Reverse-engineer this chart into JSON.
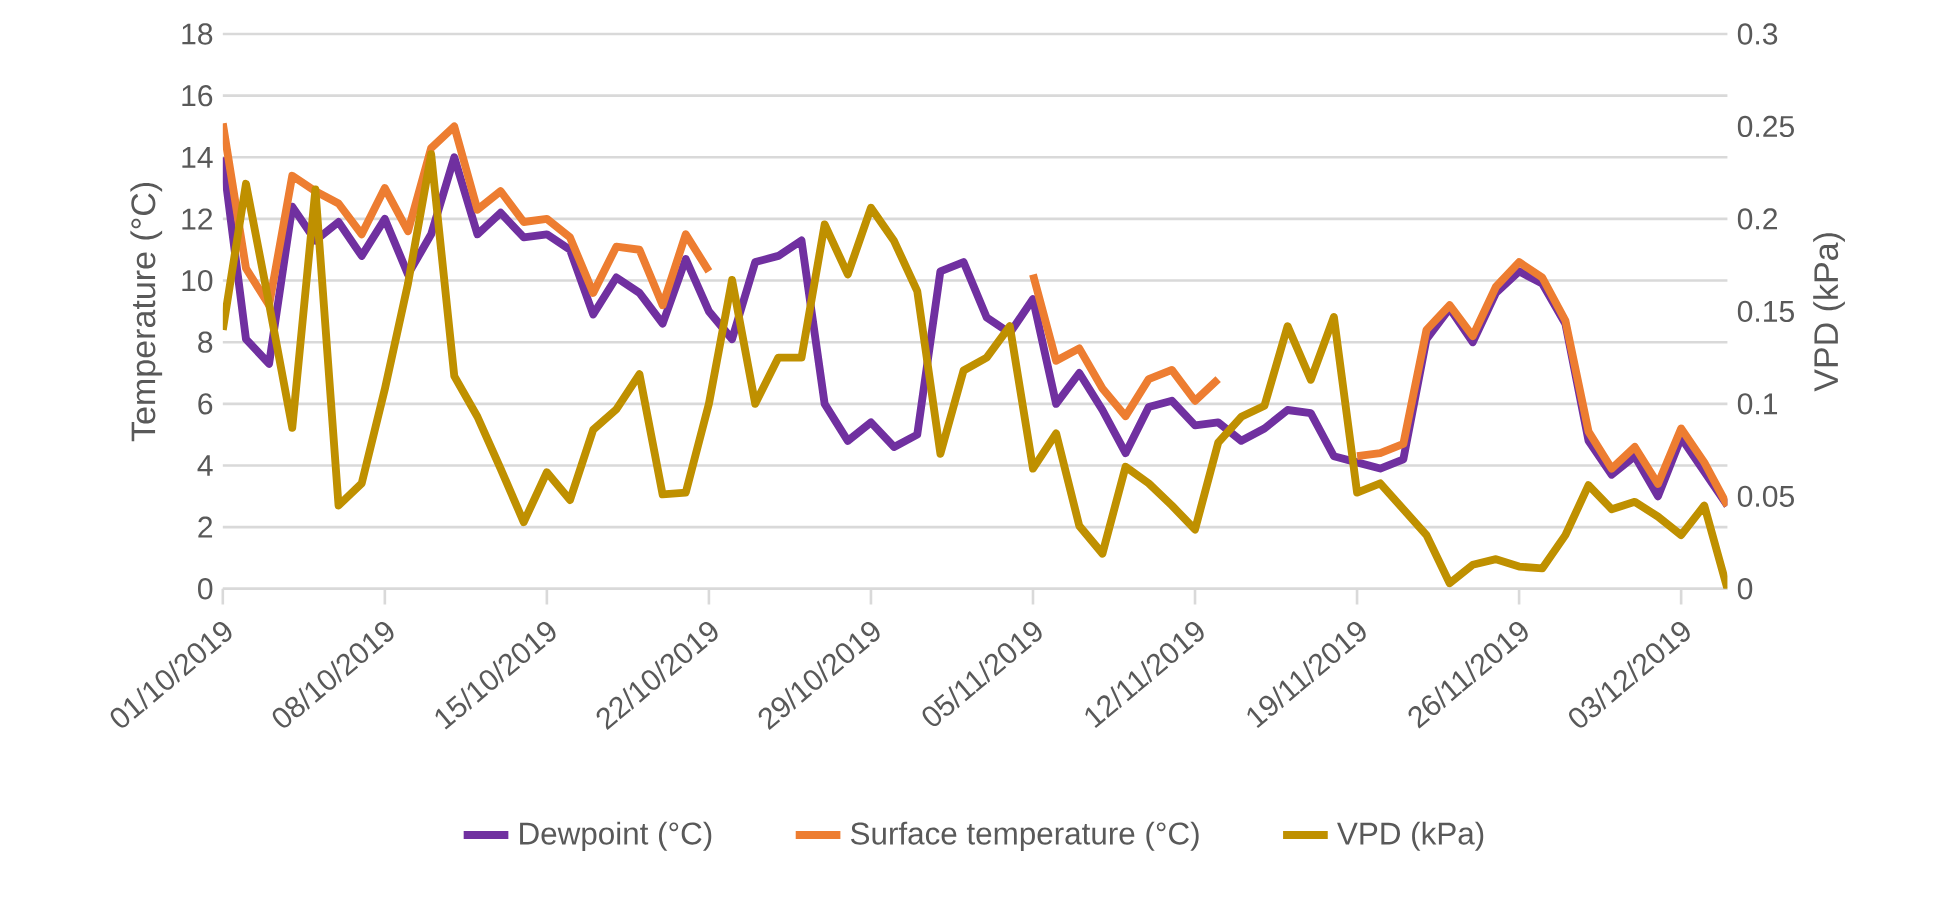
{
  "chart_data": {
    "type": "line",
    "ylabel": "Temperature (°C)",
    "y2label": "VPD (kPa)",
    "x": [
      "2019-10-01",
      "2019-10-02",
      "2019-10-03",
      "2019-10-04",
      "2019-10-05",
      "2019-10-06",
      "2019-10-07",
      "2019-10-08",
      "2019-10-09",
      "2019-10-10",
      "2019-10-11",
      "2019-10-12",
      "2019-10-13",
      "2019-10-14",
      "2019-10-15",
      "2019-10-16",
      "2019-10-17",
      "2019-10-18",
      "2019-10-19",
      "2019-10-20",
      "2019-10-21",
      "2019-10-22",
      "2019-10-23",
      "2019-10-24",
      "2019-10-25",
      "2019-10-26",
      "2019-10-27",
      "2019-10-28",
      "2019-10-29",
      "2019-10-30",
      "2019-10-31",
      "2019-11-01",
      "2019-11-02",
      "2019-11-03",
      "2019-11-04",
      "2019-11-05",
      "2019-11-06",
      "2019-11-07",
      "2019-11-08",
      "2019-11-09",
      "2019-11-10",
      "2019-11-11",
      "2019-11-12",
      "2019-11-13",
      "2019-11-14",
      "2019-11-15",
      "2019-11-16",
      "2019-11-17",
      "2019-11-18",
      "2019-11-19",
      "2019-11-20",
      "2019-11-21",
      "2019-11-22",
      "2019-11-23",
      "2019-11-24",
      "2019-11-25",
      "2019-11-26",
      "2019-11-27",
      "2019-11-28",
      "2019-11-29",
      "2019-11-30",
      "2019-12-01",
      "2019-12-02",
      "2019-12-03",
      "2019-12-04",
      "2019-12-05"
    ],
    "series": [
      {
        "name": "Dewpoint (°C)",
        "color": "#7030a0",
        "values": [
          14.0,
          8.1,
          7.3,
          12.4,
          11.3,
          11.9,
          10.8,
          12.0,
          10.2,
          11.5,
          14.0,
          11.5,
          12.2,
          11.4,
          11.5,
          11.0,
          8.9,
          10.1,
          9.6,
          8.6,
          10.7,
          9.0,
          8.1,
          10.6,
          10.8,
          11.3,
          6.0,
          4.8,
          5.4,
          4.6,
          5.0,
          10.3,
          10.6,
          8.8,
          8.3,
          9.4,
          6.0,
          7.0,
          5.8,
          4.4,
          5.9,
          6.1,
          5.3,
          5.4,
          4.8,
          5.2,
          5.8,
          5.7,
          4.3,
          4.1,
          3.9,
          4.2,
          8.1,
          9.1,
          8.0,
          9.6,
          10.3,
          9.9,
          8.6,
          4.8,
          3.7,
          4.3,
          3.0,
          4.9,
          3.8,
          2.7
        ]
      },
      {
        "name": "Surface temperature (°C)",
        "color": "#ed7d31",
        "values": [
          15.1,
          10.4,
          9.2,
          13.4,
          12.9,
          12.5,
          11.5,
          13.0,
          11.6,
          14.3,
          15.0,
          12.3,
          12.9,
          11.9,
          12.0,
          11.4,
          9.6,
          11.1,
          11.0,
          9.2,
          11.5,
          10.3,
          null,
          null,
          null,
          null,
          null,
          null,
          null,
          null,
          null,
          null,
          null,
          null,
          null,
          10.2,
          7.4,
          7.8,
          6.5,
          5.6,
          6.8,
          7.1,
          6.1,
          6.8,
          null,
          null,
          null,
          null,
          null,
          4.3,
          4.4,
          4.7,
          8.4,
          9.2,
          8.2,
          9.8,
          10.6,
          10.1,
          8.7,
          5.1,
          3.9,
          4.6,
          3.4,
          5.2,
          4.1,
          2.7
        ]
      },
      {
        "name": "VPD (kPa)",
        "color": "#bf9000",
        "axis": "y2",
        "values": [
          0.14,
          0.219,
          0.154,
          0.087,
          0.216,
          0.045,
          0.057,
          0.108,
          0.165,
          0.235,
          0.115,
          0.093,
          0.065,
          0.036,
          0.063,
          0.048,
          0.086,
          0.097,
          0.116,
          0.051,
          0.052,
          0.1,
          0.167,
          0.1,
          0.125,
          0.125,
          0.197,
          0.17,
          0.206,
          0.188,
          0.161,
          0.073,
          0.118,
          0.125,
          0.142,
          0.065,
          0.084,
          0.034,
          0.019,
          0.066,
          0.057,
          0.045,
          0.032,
          0.079,
          0.093,
          0.099,
          0.142,
          0.113,
          0.147,
          0.052,
          0.057,
          0.043,
          0.029,
          0.003,
          0.013,
          0.016,
          0.012,
          0.011,
          0.029,
          0.056,
          0.043,
          0.047,
          0.039,
          0.029,
          0.045,
          0.0
        ]
      }
    ],
    "xlim": [
      "2019-10-01",
      "2019-12-05"
    ],
    "xticks": [
      {
        "value": "2019-10-01",
        "label": "01/10/2019"
      },
      {
        "value": "2019-10-08",
        "label": "08/10/2019"
      },
      {
        "value": "2019-10-15",
        "label": "15/10/2019"
      },
      {
        "value": "2019-10-22",
        "label": "22/10/2019"
      },
      {
        "value": "2019-10-29",
        "label": "29/10/2019"
      },
      {
        "value": "2019-11-05",
        "label": "05/11/2019"
      },
      {
        "value": "2019-11-12",
        "label": "12/11/2019"
      },
      {
        "value": "2019-11-19",
        "label": "19/11/2019"
      },
      {
        "value": "2019-11-26",
        "label": "26/11/2019"
      },
      {
        "value": "2019-12-03",
        "label": "03/12/2019"
      }
    ],
    "ylim": [
      0,
      18
    ],
    "yticks": [
      0,
      2,
      4,
      6,
      8,
      10,
      12,
      14,
      16,
      18
    ],
    "y2lim": [
      0,
      0.3
    ],
    "y2ticks": [
      0,
      0.05,
      0.1,
      0.15,
      0.2,
      0.25,
      0.3
    ],
    "grid": "y",
    "legend": "bottom",
    "marker": "none",
    "line_style": "solid"
  }
}
